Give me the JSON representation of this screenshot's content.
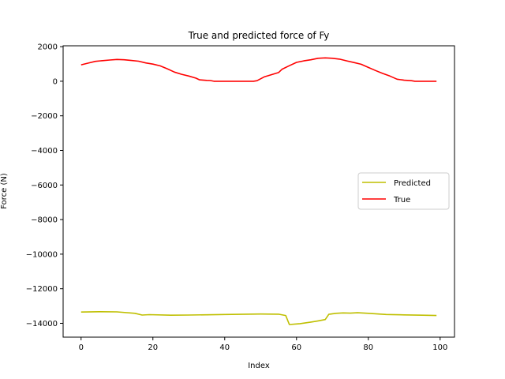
{
  "chart_data": {
    "type": "line",
    "title": "True and predicted force of Fy",
    "xlabel": "Index",
    "ylabel": "Force (N)",
    "xlim": [
      -5,
      104
    ],
    "ylim": [
      -14800,
      2050
    ],
    "x_ticks": [
      0,
      20,
      40,
      60,
      80,
      100
    ],
    "y_ticks": [
      2000,
      0,
      -2000,
      -4000,
      -6000,
      -8000,
      -10000,
      -12000,
      -14000
    ],
    "grid": false,
    "legend_position": "center right",
    "series": [
      {
        "name": "Predicted",
        "color": "#bfbf00",
        "points": [
          [
            0,
            -13350
          ],
          [
            5,
            -13330
          ],
          [
            10,
            -13340
          ],
          [
            15,
            -13420
          ],
          [
            17,
            -13520
          ],
          [
            19,
            -13500
          ],
          [
            25,
            -13530
          ],
          [
            30,
            -13520
          ],
          [
            40,
            -13490
          ],
          [
            50,
            -13460
          ],
          [
            55,
            -13470
          ],
          [
            57,
            -13550
          ],
          [
            58,
            -14070
          ],
          [
            61,
            -14020
          ],
          [
            64,
            -13930
          ],
          [
            66,
            -13860
          ],
          [
            68,
            -13780
          ],
          [
            69,
            -13480
          ],
          [
            71,
            -13420
          ],
          [
            73,
            -13400
          ],
          [
            75,
            -13410
          ],
          [
            77,
            -13390
          ],
          [
            80,
            -13420
          ],
          [
            85,
            -13490
          ],
          [
            90,
            -13510
          ],
          [
            95,
            -13530
          ],
          [
            99,
            -13550
          ]
        ]
      },
      {
        "name": "True",
        "color": "#ff0000",
        "points": [
          [
            0,
            950
          ],
          [
            2,
            1050
          ],
          [
            4,
            1150
          ],
          [
            6,
            1190
          ],
          [
            8,
            1230
          ],
          [
            10,
            1260
          ],
          [
            12,
            1240
          ],
          [
            14,
            1200
          ],
          [
            16,
            1160
          ],
          [
            18,
            1060
          ],
          [
            20,
            990
          ],
          [
            22,
            890
          ],
          [
            24,
            720
          ],
          [
            26,
            530
          ],
          [
            28,
            400
          ],
          [
            30,
            300
          ],
          [
            32,
            180
          ],
          [
            33,
            80
          ],
          [
            35,
            50
          ],
          [
            36,
            40
          ],
          [
            37,
            0
          ],
          [
            40,
            0
          ],
          [
            45,
            0
          ],
          [
            48,
            0
          ],
          [
            49,
            30
          ],
          [
            51,
            250
          ],
          [
            53,
            380
          ],
          [
            55,
            500
          ],
          [
            56,
            700
          ],
          [
            58,
            900
          ],
          [
            60,
            1090
          ],
          [
            62,
            1180
          ],
          [
            64,
            1240
          ],
          [
            66,
            1330
          ],
          [
            68,
            1350
          ],
          [
            70,
            1330
          ],
          [
            72,
            1280
          ],
          [
            74,
            1180
          ],
          [
            76,
            1080
          ],
          [
            78,
            980
          ],
          [
            80,
            800
          ],
          [
            82,
            620
          ],
          [
            84,
            450
          ],
          [
            86,
            300
          ],
          [
            88,
            120
          ],
          [
            90,
            60
          ],
          [
            92,
            30
          ],
          [
            93,
            0
          ],
          [
            96,
            0
          ],
          [
            99,
            0
          ]
        ]
      }
    ]
  }
}
